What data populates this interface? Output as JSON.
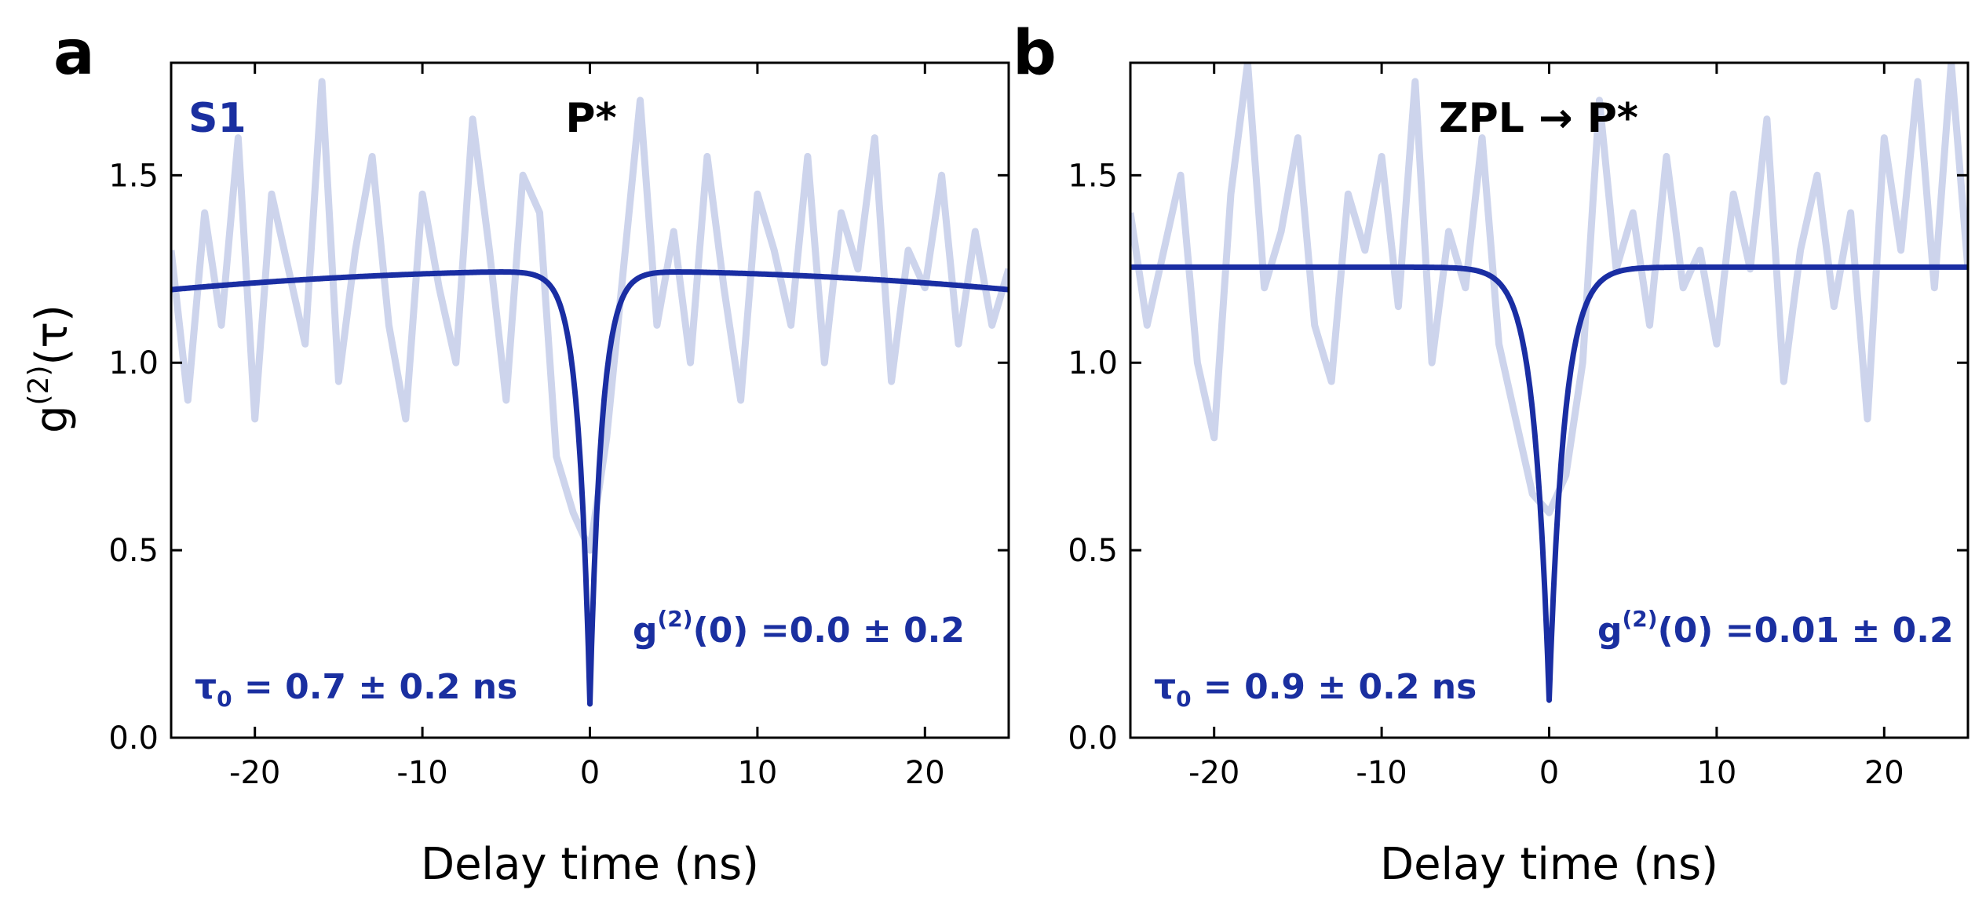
{
  "colors": {
    "fit": "#1a2ea3",
    "raw": "#cdd4ec",
    "annot": "#1a2fa0",
    "axis": "#000000"
  },
  "chart_data": [
    {
      "type": "line",
      "panel_label": "a",
      "title": "P*",
      "sample_label": "S1",
      "xlabel": "Delay time (ns)",
      "ylabel_base": "g",
      "ylabel_sup": "(2)",
      "ylabel_arg": "(τ)",
      "xlim": [
        -25,
        25
      ],
      "ylim": [
        0.0,
        1.8
      ],
      "xticks": [
        -20,
        -10,
        0,
        10,
        20
      ],
      "xtick_labels": [
        "-20",
        "-10",
        "0",
        "10",
        "20"
      ],
      "yticks": [
        0.0,
        0.5,
        1.0,
        1.5
      ],
      "ytick_labels": [
        "0.0",
        "0.5",
        "1.0",
        "1.5"
      ],
      "fit": {
        "baseline": 1.245,
        "dip_min": 0.09,
        "tau0_ns": 0.7,
        "slope_per_ns": -0.0004
      },
      "annotations": {
        "g2_prefix": "g",
        "g2_sup": "(2)",
        "g2_value": "(0) =0.0 ± 0.2",
        "tau_prefix": "τ",
        "tau_sub": "0",
        "tau_value": " = 0.7 ± 0.2 ns"
      },
      "series": [
        {
          "name": "raw data",
          "x": [
            -25,
            -24,
            -23,
            -22,
            -21,
            -20,
            -19,
            -18,
            -17,
            -16,
            -15,
            -14,
            -13,
            -12,
            -11,
            -10,
            -9,
            -8,
            -7,
            -6,
            -5,
            -4,
            -3,
            -2,
            -1,
            0,
            1,
            2,
            3,
            4,
            5,
            6,
            7,
            8,
            9,
            10,
            11,
            12,
            13,
            14,
            15,
            16,
            17,
            18,
            19,
            20,
            21,
            22,
            23,
            24,
            25
          ],
          "y": [
            1.3,
            0.9,
            1.4,
            1.1,
            1.6,
            0.85,
            1.45,
            1.25,
            1.05,
            1.75,
            0.95,
            1.3,
            1.55,
            1.1,
            0.85,
            1.45,
            1.2,
            1.0,
            1.65,
            1.3,
            0.9,
            1.5,
            1.4,
            0.75,
            0.6,
            0.5,
            0.8,
            1.25,
            1.7,
            1.1,
            1.35,
            1.0,
            1.55,
            1.2,
            0.9,
            1.45,
            1.3,
            1.1,
            1.55,
            1.0,
            1.4,
            1.25,
            1.6,
            0.95,
            1.3,
            1.2,
            1.5,
            1.05,
            1.35,
            1.1,
            1.25
          ]
        },
        {
          "name": "fit",
          "x": [],
          "y": []
        }
      ]
    },
    {
      "type": "line",
      "panel_label": "b",
      "title": "ZPL → P*",
      "sample_label": "",
      "xlabel": "Delay time (ns)",
      "xlim": [
        -25,
        25
      ],
      "ylim": [
        0.0,
        1.8
      ],
      "xticks": [
        -20,
        -10,
        0,
        10,
        20
      ],
      "xtick_labels": [
        "-20",
        "-10",
        "0",
        "10",
        "20"
      ],
      "yticks": [
        0.0,
        0.5,
        1.0,
        1.5
      ],
      "ytick_labels": [
        "0.0",
        "0.5",
        "1.0",
        "1.5"
      ],
      "fit": {
        "baseline": 1.255,
        "dip_min": 0.1,
        "tau0_ns": 0.9,
        "slope_per_ns": 0.0
      },
      "annotations": {
        "g2_prefix": "g",
        "g2_sup": "(2)",
        "g2_value": "(0) =0.01 ± 0.2",
        "tau_prefix": "τ",
        "tau_sub": "0",
        "tau_value": " = 0.9 ± 0.2 ns"
      },
      "series": [
        {
          "name": "raw data",
          "x": [
            -25,
            -24,
            -23,
            -22,
            -21,
            -20,
            -19,
            -18,
            -17,
            -16,
            -15,
            -14,
            -13,
            -12,
            -11,
            -10,
            -9,
            -8,
            -7,
            -6,
            -5,
            -4,
            -3,
            -2,
            -1,
            0,
            1,
            2,
            3,
            4,
            5,
            6,
            7,
            8,
            9,
            10,
            11,
            12,
            13,
            14,
            15,
            16,
            17,
            18,
            19,
            20,
            21,
            22,
            23,
            24,
            25
          ],
          "y": [
            1.4,
            1.1,
            1.3,
            1.5,
            1.0,
            0.8,
            1.45,
            1.8,
            1.2,
            1.35,
            1.6,
            1.1,
            0.95,
            1.45,
            1.3,
            1.55,
            1.15,
            1.75,
            1.0,
            1.35,
            1.2,
            1.6,
            1.05,
            0.85,
            0.65,
            0.6,
            0.7,
            1.0,
            1.7,
            1.25,
            1.4,
            1.1,
            1.55,
            1.2,
            1.3,
            1.05,
            1.45,
            1.25,
            1.65,
            0.95,
            1.3,
            1.5,
            1.15,
            1.4,
            0.85,
            1.6,
            1.3,
            1.75,
            1.2,
            1.8,
            1.25
          ]
        },
        {
          "name": "fit",
          "x": [],
          "y": []
        }
      ]
    }
  ]
}
